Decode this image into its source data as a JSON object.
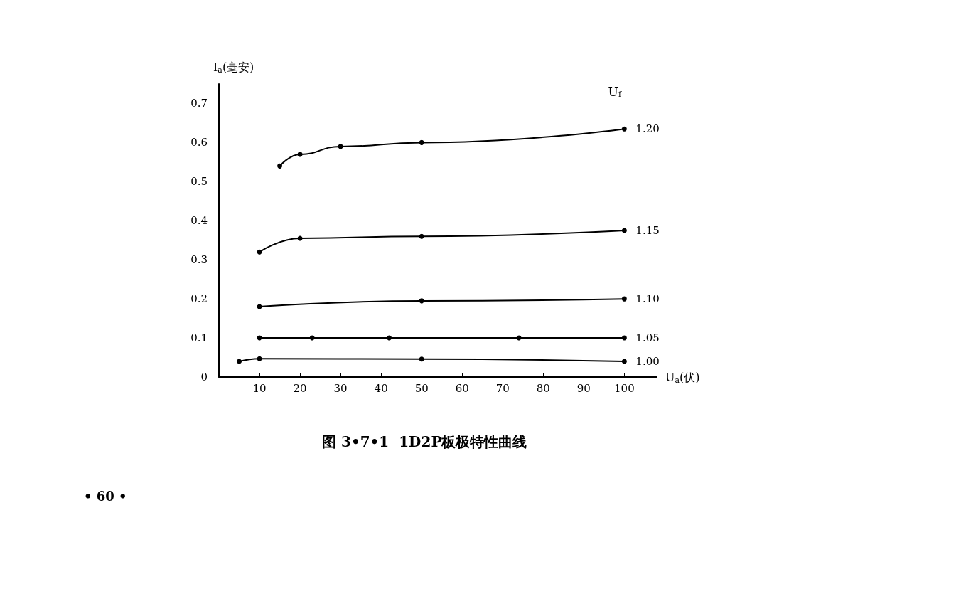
{
  "chart_data": {
    "type": "line",
    "title": "图 3•7•1  1D2P板极特性曲线",
    "xlabel": "U$_{a}$(伏)",
    "ylabel": "I$_{a}$(毫安)",
    "legend_title": "U$_{f}$",
    "xlim": [
      0,
      108
    ],
    "xticks": [
      10,
      20,
      30,
      40,
      50,
      60,
      70,
      80,
      90,
      100
    ],
    "ylim": [
      0,
      0.75
    ],
    "yticks": [
      0,
      0.1,
      0.2,
      0.3,
      0.4,
      0.5,
      0.6,
      0.7
    ],
    "grid": false,
    "marker": "circle",
    "line_style": "solid",
    "legend": "right",
    "series": [
      {
        "name": "1.20",
        "color": "#000000",
        "x": [
          15,
          20,
          30,
          50,
          100
        ],
        "values": [
          0.54,
          0.57,
          0.59,
          0.6,
          0.635
        ]
      },
      {
        "name": "1.15",
        "color": "#000000",
        "x": [
          10,
          20,
          50,
          100
        ],
        "values": [
          0.32,
          0.355,
          0.36,
          0.375
        ]
      },
      {
        "name": "1.10",
        "color": "#000000",
        "x": [
          10,
          50,
          100
        ],
        "values": [
          0.18,
          0.195,
          0.2
        ]
      },
      {
        "name": "1.05",
        "color": "#000000",
        "x": [
          10,
          23,
          42,
          74,
          100
        ],
        "values": [
          0.1,
          0.1,
          0.1,
          0.1,
          0.1
        ]
      },
      {
        "name": "1.00",
        "color": "#000000",
        "x": [
          5,
          10,
          50,
          100
        ],
        "values": [
          0.04,
          0.047,
          0.046,
          0.04
        ]
      }
    ],
    "annotations": [
      "• 60 •"
    ]
  }
}
